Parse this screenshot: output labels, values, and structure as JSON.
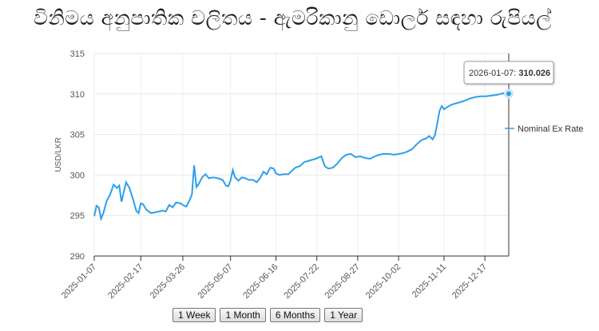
{
  "title": "විනිමය අනුපාතික චලිතය - ඇමරිකානු ඩොලර් සඳහා රුපියල්",
  "range_buttons": [
    {
      "label": "1 Week"
    },
    {
      "label": "1 Month"
    },
    {
      "label": "6 Months"
    },
    {
      "label": "1 Year"
    }
  ],
  "tooltip": {
    "date": "2026-01-07",
    "value": "310.026"
  },
  "chart_data": {
    "type": "line",
    "ylabel": "USD/LKR",
    "xlabel": "",
    "ylim": [
      290,
      315
    ],
    "yticks": [
      290,
      295,
      300,
      305,
      310,
      315
    ],
    "xticks": [
      "2025-01-07",
      "2025-02-17",
      "2025-03-26",
      "2025-05-07",
      "2025-06-16",
      "2025-07-22",
      "2025-08-27",
      "2025-10-02",
      "2025-11-11",
      "2025-12-17"
    ],
    "legend": "right",
    "grid": true,
    "color": "#2f9fe9",
    "series": [
      {
        "name": "Nominal Ex Rate",
        "points": [
          [
            "2025-01-07",
            294.9
          ],
          [
            "2025-01-09",
            296.2
          ],
          [
            "2025-01-11",
            296.0
          ],
          [
            "2025-01-13",
            294.6
          ],
          [
            "2025-01-15",
            295.3
          ],
          [
            "2025-01-18",
            296.8
          ],
          [
            "2025-01-21",
            297.6
          ],
          [
            "2025-01-24",
            298.8
          ],
          [
            "2025-01-27",
            298.4
          ],
          [
            "2025-01-29",
            298.7
          ],
          [
            "2025-01-31",
            296.7
          ],
          [
            "2025-02-02",
            297.9
          ],
          [
            "2025-02-04",
            299.1
          ],
          [
            "2025-02-07",
            298.4
          ],
          [
            "2025-02-10",
            297.1
          ],
          [
            "2025-02-13",
            295.6
          ],
          [
            "2025-02-15",
            295.3
          ],
          [
            "2025-02-17",
            296.5
          ],
          [
            "2025-02-19",
            296.4
          ],
          [
            "2025-02-22",
            295.7
          ],
          [
            "2025-02-26",
            295.3
          ],
          [
            "2025-03-02",
            295.4
          ],
          [
            "2025-03-05",
            295.5
          ],
          [
            "2025-03-08",
            295.6
          ],
          [
            "2025-03-11",
            295.5
          ],
          [
            "2025-03-14",
            296.3
          ],
          [
            "2025-03-17",
            296.0
          ],
          [
            "2025-03-20",
            296.6
          ],
          [
            "2025-03-24",
            296.5
          ],
          [
            "2025-03-26",
            296.3
          ],
          [
            "2025-03-29",
            296.1
          ],
          [
            "2025-04-01",
            296.9
          ],
          [
            "2025-04-03",
            297.6
          ],
          [
            "2025-04-05",
            301.2
          ],
          [
            "2025-04-07",
            298.5
          ],
          [
            "2025-04-09",
            298.9
          ],
          [
            "2025-04-12",
            299.7
          ],
          [
            "2025-04-15",
            300.1
          ],
          [
            "2025-04-18",
            299.6
          ],
          [
            "2025-04-22",
            299.7
          ],
          [
            "2025-04-26",
            299.6
          ],
          [
            "2025-04-30",
            299.4
          ],
          [
            "2025-05-03",
            298.7
          ],
          [
            "2025-05-05",
            298.6
          ],
          [
            "2025-05-07",
            299.3
          ],
          [
            "2025-05-09",
            300.6
          ],
          [
            "2025-05-11",
            299.7
          ],
          [
            "2025-05-14",
            299.3
          ],
          [
            "2025-05-17",
            299.7
          ],
          [
            "2025-05-20",
            299.6
          ],
          [
            "2025-05-23",
            299.4
          ],
          [
            "2025-05-27",
            299.4
          ],
          [
            "2025-05-30",
            299.1
          ],
          [
            "2025-06-02",
            299.6
          ],
          [
            "2025-06-05",
            300.4
          ],
          [
            "2025-06-08",
            300.1
          ],
          [
            "2025-06-11",
            300.9
          ],
          [
            "2025-06-14",
            300.8
          ],
          [
            "2025-06-16",
            300.2
          ],
          [
            "2025-06-19",
            300.0
          ],
          [
            "2025-06-23",
            300.1
          ],
          [
            "2025-06-27",
            300.1
          ],
          [
            "2025-06-30",
            300.5
          ],
          [
            "2025-07-03",
            300.9
          ],
          [
            "2025-07-07",
            301.1
          ],
          [
            "2025-07-11",
            301.6
          ],
          [
            "2025-07-16",
            301.8
          ],
          [
            "2025-07-21",
            302.0
          ],
          [
            "2025-07-26",
            302.3
          ],
          [
            "2025-07-29",
            301.1
          ],
          [
            "2025-08-01",
            300.8
          ],
          [
            "2025-08-05",
            300.9
          ],
          [
            "2025-08-09",
            301.4
          ],
          [
            "2025-08-13",
            302.1
          ],
          [
            "2025-08-17",
            302.5
          ],
          [
            "2025-08-21",
            302.6
          ],
          [
            "2025-08-25",
            302.2
          ],
          [
            "2025-08-29",
            302.3
          ],
          [
            "2025-09-03",
            302.1
          ],
          [
            "2025-09-07",
            302.0
          ],
          [
            "2025-09-11",
            302.3
          ],
          [
            "2025-09-15",
            302.5
          ],
          [
            "2025-09-19",
            302.6
          ],
          [
            "2025-09-24",
            302.6
          ],
          [
            "2025-09-28",
            302.5
          ],
          [
            "2025-10-02",
            302.6
          ],
          [
            "2025-10-06",
            302.7
          ],
          [
            "2025-10-10",
            302.9
          ],
          [
            "2025-10-14",
            303.2
          ],
          [
            "2025-10-18",
            303.8
          ],
          [
            "2025-10-22",
            304.3
          ],
          [
            "2025-10-26",
            304.5
          ],
          [
            "2025-10-29",
            304.8
          ],
          [
            "2025-11-01",
            304.4
          ],
          [
            "2025-11-03",
            304.9
          ],
          [
            "2025-11-05",
            306.3
          ],
          [
            "2025-11-07",
            307.9
          ],
          [
            "2025-11-09",
            308.5
          ],
          [
            "2025-11-11",
            308.1
          ],
          [
            "2025-11-14",
            308.4
          ],
          [
            "2025-11-18",
            308.7
          ],
          [
            "2025-11-23",
            308.9
          ],
          [
            "2025-11-28",
            309.1
          ],
          [
            "2025-12-03",
            309.4
          ],
          [
            "2025-12-08",
            309.6
          ],
          [
            "2025-12-13",
            309.7
          ],
          [
            "2025-12-18",
            309.7
          ],
          [
            "2025-12-23",
            309.8
          ],
          [
            "2025-12-28",
            309.9
          ],
          [
            "2026-01-02",
            310.1
          ],
          [
            "2026-01-05",
            309.8
          ],
          [
            "2026-01-07",
            310.026
          ]
        ]
      }
    ]
  }
}
